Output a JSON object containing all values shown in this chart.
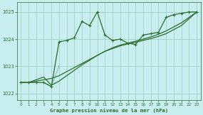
{
  "x": [
    0,
    1,
    2,
    3,
    4,
    5,
    6,
    7,
    8,
    9,
    10,
    11,
    12,
    13,
    14,
    15,
    16,
    17,
    18,
    19,
    20,
    21,
    22,
    23
  ],
  "series_main": [
    1022.4,
    1022.4,
    1022.4,
    1022.4,
    1022.25,
    1023.9,
    1023.95,
    1024.05,
    1024.65,
    1024.5,
    1025.0,
    1024.15,
    1023.95,
    1024.0,
    1023.85,
    1023.8,
    1024.15,
    1024.2,
    1024.25,
    1024.8,
    1024.9,
    1024.95,
    1025.0,
    1025.0
  ],
  "series_trend1": [
    1022.4,
    1022.4,
    1022.45,
    1022.5,
    1022.55,
    1022.65,
    1022.8,
    1022.95,
    1023.1,
    1023.25,
    1023.4,
    1023.55,
    1023.65,
    1023.75,
    1023.82,
    1023.88,
    1023.95,
    1024.02,
    1024.1,
    1024.2,
    1024.35,
    1024.5,
    1024.75,
    1025.0
  ],
  "series_trend2": [
    1022.4,
    1022.4,
    1022.5,
    1022.6,
    1022.3,
    1022.45,
    1022.65,
    1022.85,
    1023.05,
    1023.22,
    1023.4,
    1023.55,
    1023.68,
    1023.78,
    1023.85,
    1023.92,
    1024.0,
    1024.08,
    1024.18,
    1024.3,
    1024.45,
    1024.6,
    1024.8,
    1025.0
  ],
  "series_dotted": [
    1022.4,
    1022.4,
    null,
    1022.4,
    1022.25,
    1023.0,
    null,
    null,
    null,
    null,
    null,
    null,
    null,
    null,
    null,
    null,
    null,
    null,
    null,
    null,
    null,
    null,
    null,
    null
  ],
  "bg_color": "#c8eef0",
  "grid_color": "#99ccbb",
  "line_color": "#2d6e2d",
  "xlabel": "Graphe pression niveau de la mer (hPa)",
  "ylim": [
    1021.75,
    1025.35
  ],
  "xlim": [
    -0.5,
    23.5
  ],
  "yticks": [
    1022,
    1023,
    1024,
    1025
  ],
  "xticks": [
    0,
    1,
    2,
    3,
    4,
    5,
    6,
    7,
    8,
    9,
    10,
    11,
    12,
    13,
    14,
    15,
    16,
    17,
    18,
    19,
    20,
    21,
    22,
    23
  ]
}
